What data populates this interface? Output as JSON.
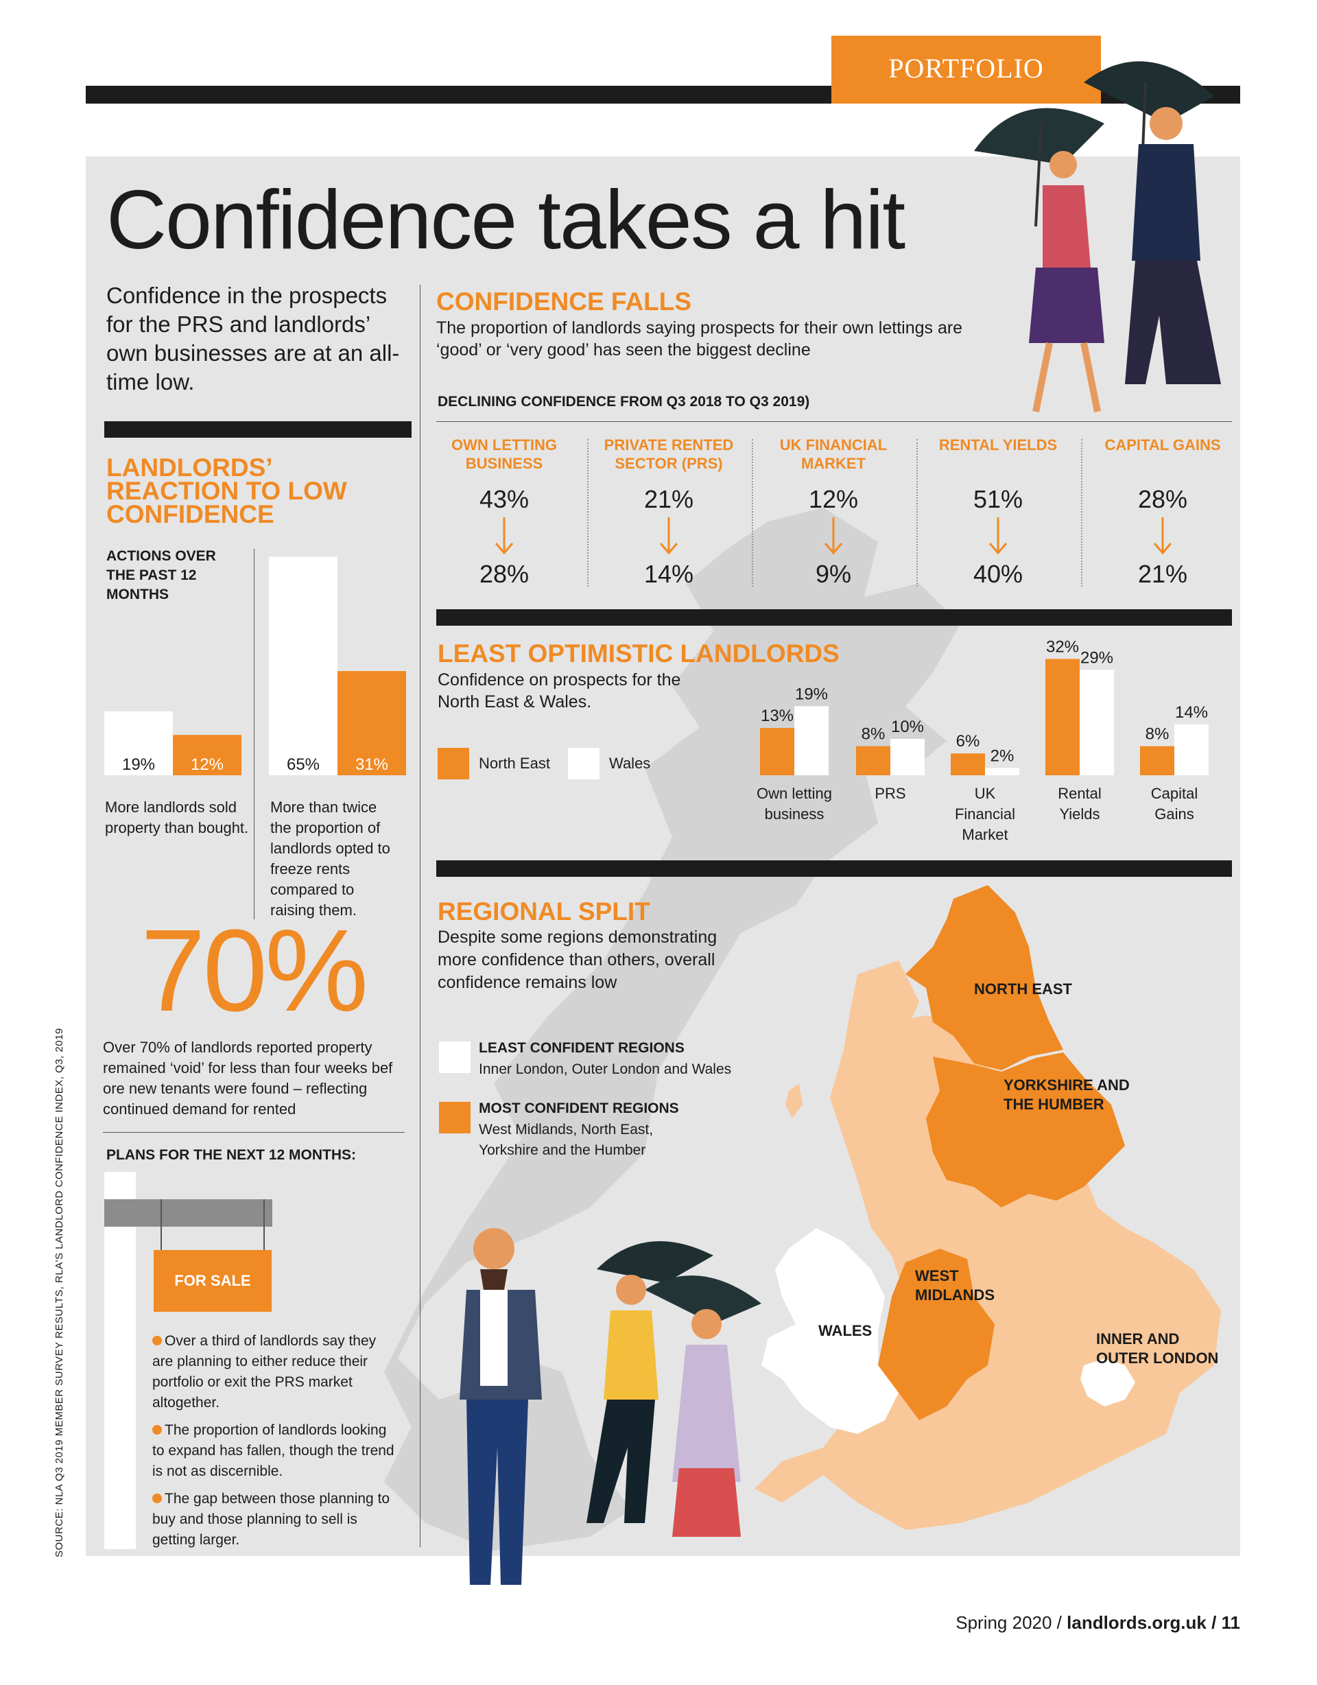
{
  "section_tag": "PORTFOLIO",
  "title": "Confidence takes a hit",
  "lead": "Confidence in the prospects for the PRS and landlords’ own businesses are at an all-time low.",
  "reaction": {
    "title": "LANDLORDS’ REACTION TO LOW CONFIDENCE",
    "subtitle": "ACTIONS OVER THE PAST 12 MONTHS",
    "left_caption": "More landlords sold property than bought.",
    "right_caption": "More than twice the proportion of landlords opted to freeze rents compared to raising them."
  },
  "void": {
    "big_number": "70%",
    "text": "Over 70% of landlords reported property remained ‘void’ for less than four weeks bef ore new tenants were found – reflecting continued demand for rented"
  },
  "plans": {
    "title": "PLANS FOR THE NEXT 12 MONTHS:",
    "sign": "FOR SALE",
    "bullets": [
      "Over a third of landlords say they are planning to either reduce their portfolio or exit the PRS market altogether.",
      "The proportion of landlords looking to expand has fallen, though the trend is not as discernible.",
      "The gap between those planning to buy and those planning to sell is getting larger."
    ]
  },
  "confidence_falls": {
    "title": "CONFIDENCE FALLS",
    "text": "The proportion of landlords saying prospects for their own lettings are ‘good’ or ‘very good’ has seen the biggest decline",
    "subhead": "DECLINING CONFIDENCE FROM Q3 2018 TO Q3 2019)"
  },
  "least_optimistic": {
    "title": "LEAST OPTIMISTIC LANDLORDS",
    "text": "Confidence on prospects for the North East & Wales."
  },
  "regional": {
    "title": "REGIONAL SPLIT",
    "text": "Despite some regions demonstrating more confidence than others, overall confidence remains low",
    "least_title": "LEAST CONFIDENT REGIONS",
    "least_text": "Inner London, Outer London and Wales",
    "most_title": "MOST CONFIDENT REGIONS",
    "most_text": "West Midlands, North East, Yorkshire and the Humber",
    "map_labels": {
      "north_east": "NORTH EAST",
      "yorkshire": "YORKSHIRE AND THE HUMBER",
      "west_midlands": "WEST MIDLANDS",
      "wales": "WALES",
      "london": "INNER AND OUTER LONDON"
    }
  },
  "source": "SOURCE: NLA Q3 2019 MEMBER SURVEY RESULTS, RLA'S LANDLORD CONFIDENCE INDEX, Q3, 2019",
  "footer": {
    "season": "Spring 2020 /",
    "site": "landlords.org.uk",
    "page": "/ 11"
  },
  "colors": {
    "orange": "#f08a24",
    "light_orange": "#f8c89a",
    "dark": "#1c1c1c",
    "panel": "#e5e5e5",
    "white": "#ffffff"
  },
  "chart_data": [
    {
      "type": "bar",
      "series": [
        {
          "values": [
            19,
            12
          ],
          "labels": [
            "19%",
            "12%"
          ]
        },
        {
          "values": [
            65,
            31
          ],
          "labels": [
            "65%",
            "31%"
          ]
        }
      ]
    },
    {
      "type": "table",
      "categories": [
        "OWN LETTING BUSINESS",
        "PRIVATE RENTED SECTOR (PRS)",
        "UK FINANCIAL MARKET",
        "RENTAL YIELDS",
        "CAPITAL GAINS"
      ],
      "series": [
        {
          "values": [
            43,
            21,
            12,
            51,
            28
          ]
        },
        {
          "values": [
            28,
            14,
            9,
            40,
            21
          ]
        }
      ]
    },
    {
      "type": "bar",
      "categories": [
        "Own letting business",
        "PRS",
        "UK Financial Market",
        "Rental Yields",
        "Capital Gains"
      ],
      "series": [
        {
          "name": "North East",
          "values": [
            13,
            8,
            6,
            32,
            8
          ]
        },
        {
          "name": "Wales",
          "values": [
            19,
            10,
            2,
            29,
            14
          ]
        }
      ]
    }
  ]
}
